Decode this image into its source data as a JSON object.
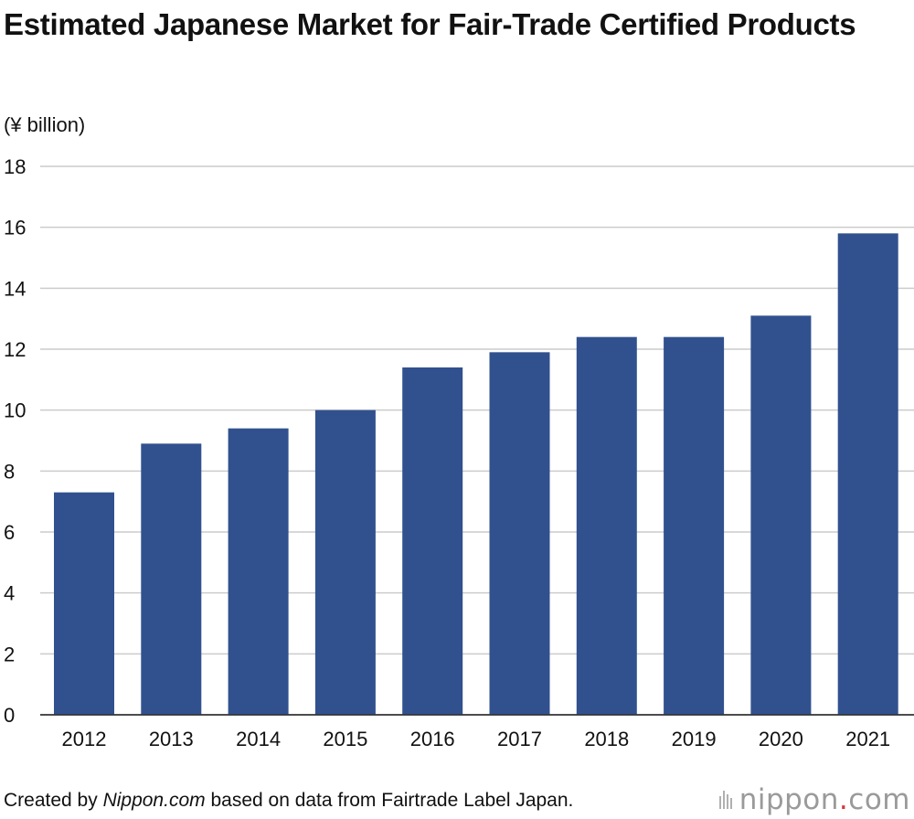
{
  "chart_data": {
    "type": "bar",
    "title": "Estimated Japanese Market for Fair-Trade Certified Products",
    "unit_label": "(¥ billion)",
    "categories": [
      "2012",
      "2013",
      "2014",
      "2015",
      "2016",
      "2017",
      "2018",
      "2019",
      "2020",
      "2021"
    ],
    "values": [
      7.3,
      8.9,
      9.4,
      10.0,
      11.4,
      11.9,
      12.4,
      12.4,
      13.1,
      15.8
    ],
    "ylim": [
      0,
      18
    ],
    "yticks": [
      "0",
      "2",
      "4",
      "6",
      "8",
      "10",
      "12",
      "14",
      "16",
      "18"
    ],
    "grid": true,
    "legend": "none",
    "bar_color": "#31518e",
    "grid_color": "#cccccc"
  },
  "footer": {
    "prefix": "Created by ",
    "site": "Nippon.com",
    "suffix": " based on data from Fairtrade Label Japan."
  },
  "logo": {
    "name": "nippon",
    "dot": ".",
    "domain": "com"
  }
}
